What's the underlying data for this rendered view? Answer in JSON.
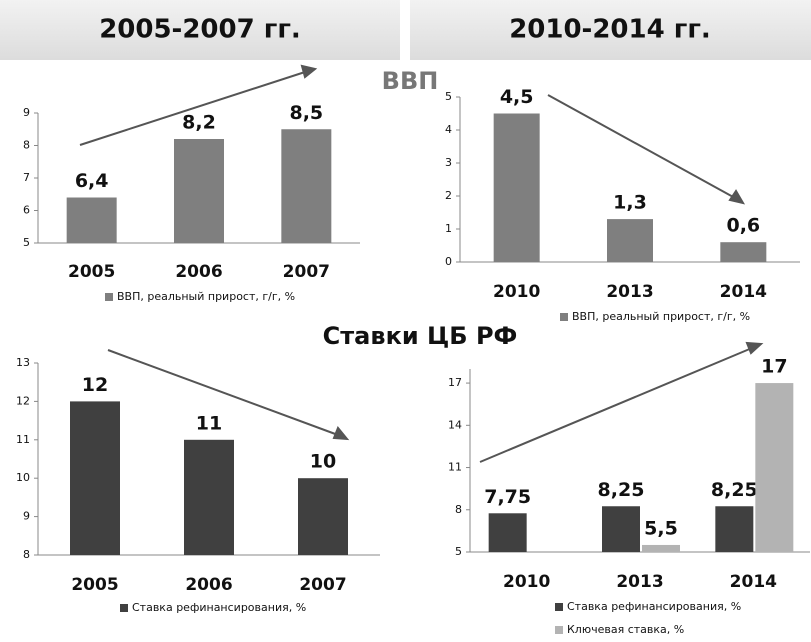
{
  "headers": [
    "2005-2007 гг.",
    "2010-2014 гг."
  ],
  "sections": [
    "ВВП",
    "Ставки ЦБ РФ"
  ],
  "chart_data": [
    {
      "type": "bar",
      "categories": [
        "2005",
        "2006",
        "2007"
      ],
      "ylim": [
        5,
        9
      ],
      "yticks": [
        5,
        6,
        7,
        8,
        9
      ],
      "series": [
        {
          "name": "ВВП, реальный прирост, г/г, %",
          "color": "#7f7f7f",
          "values": [
            6.4,
            8.2,
            8.5
          ],
          "value_labels": [
            "6,4",
            "8,2",
            "8,5"
          ]
        }
      ]
    },
    {
      "type": "bar",
      "categories": [
        "2010",
        "2013",
        "2014"
      ],
      "ylim": [
        0,
        5
      ],
      "yticks": [
        0,
        1,
        2,
        3,
        4,
        5
      ],
      "series": [
        {
          "name": "ВВП, реальный прирост, г/г, %",
          "color": "#7f7f7f",
          "values": [
            4.5,
            1.3,
            0.6
          ],
          "value_labels": [
            "4,5",
            "1,3",
            "0,6"
          ]
        }
      ]
    },
    {
      "type": "bar",
      "categories": [
        "2005",
        "2006",
        "2007"
      ],
      "ylim": [
        8,
        13
      ],
      "yticks": [
        8,
        9,
        10,
        11,
        12,
        13
      ],
      "series": [
        {
          "name": "Ставка рефинансирования, %",
          "color": "#404040",
          "values": [
            12,
            11,
            10
          ]
        }
      ]
    },
    {
      "type": "bar",
      "categories": [
        "2010",
        "2013",
        "2014"
      ],
      "ylim": [
        5,
        18
      ],
      "yticks": [
        5,
        8,
        11,
        14,
        17
      ],
      "series": [
        {
          "name": "Ставка рефинансирования, %",
          "color": "#404040",
          "values": [
            7.75,
            8.25,
            8.25
          ],
          "value_labels": [
            "7,75",
            "8,25",
            "8,25"
          ]
        },
        {
          "name": "Ключевая ставка, %",
          "color": "#b3b3b3",
          "values": [
            null,
            5.5,
            17
          ],
          "value_labels": [
            null,
            "5,5",
            "17"
          ]
        }
      ]
    }
  ]
}
